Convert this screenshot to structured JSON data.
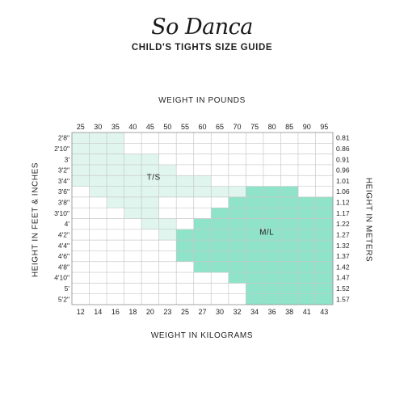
{
  "brand": {
    "logo_text": "So Danca"
  },
  "page_title": "CHILD'S TIGHTS SIZE GUIDE",
  "chart_data": {
    "type": "heatmap",
    "title": "CHILD'S TIGHTS SIZE GUIDE",
    "x_top_label": "WEIGHT IN POUNDS",
    "x_bottom_label": "WEIGHT IN KILOGRAMS",
    "y_left_label": "HEIGHT IN FEET & INCHES",
    "y_right_label": "HEIGHT IN METERS",
    "x_pounds": [
      "25",
      "30",
      "35",
      "40",
      "45",
      "50",
      "55",
      "60",
      "65",
      "70",
      "75",
      "80",
      "85",
      "90",
      "95"
    ],
    "x_kilograms": [
      "12",
      "14",
      "16",
      "18",
      "20",
      "23",
      "25",
      "27",
      "30",
      "32",
      "34",
      "36",
      "38",
      "41",
      "43"
    ],
    "y_feet_inches": [
      "2'8\"",
      "2'10\"",
      "3'",
      "3'2\"",
      "3'4\"",
      "3'6\"",
      "3'8\"",
      "3'10\"",
      "4'",
      "4'2\"",
      "4'4\"",
      "4'6\"",
      "4'8\"",
      "4'10\"",
      "5'",
      "5'2\""
    ],
    "y_meters": [
      "0.81",
      "0.86",
      "0.91",
      "0.96",
      "1.01",
      "1.06",
      "1.12",
      "1.17",
      "1.22",
      "1.27",
      "1.32",
      "1.37",
      "1.42",
      "1.47",
      "1.52",
      "1.57"
    ],
    "sizes": [
      {
        "name": "T/S",
        "color": "#dff5ee",
        "rows": [
          [
            0,
            2
          ],
          [
            0,
            2
          ],
          [
            0,
            4
          ],
          [
            0,
            5
          ],
          [
            0,
            7
          ],
          [
            1,
            9
          ],
          [
            2,
            4
          ],
          [
            3,
            4
          ],
          [
            4,
            5
          ],
          [
            5,
            5
          ]
        ]
      },
      {
        "name": "M/L",
        "color": "#8ee3c8",
        "rows": [
          [
            10,
            12
          ],
          [
            9,
            14
          ],
          [
            8,
            14
          ],
          [
            7,
            14
          ],
          [
            6,
            14
          ],
          [
            6,
            14
          ],
          [
            6,
            14
          ],
          [
            7,
            14
          ],
          [
            9,
            14
          ],
          [
            10,
            14
          ],
          [
            10,
            14
          ]
        ]
      }
    ],
    "row_start": {
      "T/S": 0,
      "M/L": 5
    },
    "colors": {
      "grid": "#c9c9c9",
      "border": "#9a9a9a"
    }
  }
}
